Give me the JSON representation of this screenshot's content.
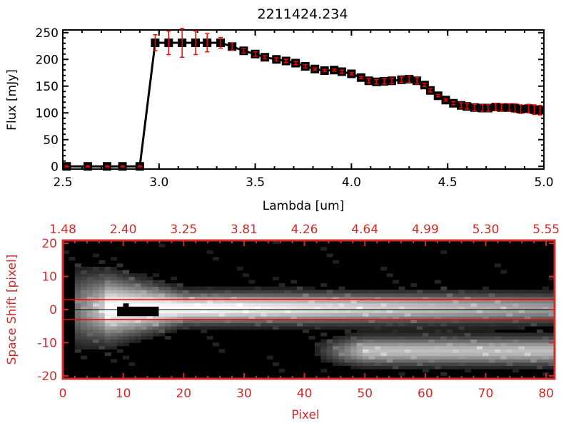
{
  "chart_data": [
    {
      "type": "line",
      "title": "2211424.234",
      "xlabel": "Lambda [um]",
      "ylabel": "Flux [mJy]",
      "xlim": [
        2.5,
        5.0
      ],
      "ylim": [
        -5,
        255
      ],
      "xticks": [
        "2.5",
        "3.0",
        "3.5",
        "4.0",
        "4.5",
        "5.0"
      ],
      "yticks": [
        "0",
        "50",
        "100",
        "150",
        "200",
        "250"
      ],
      "grid": false,
      "marker": "square",
      "line_color": "#000000",
      "errorbar_color": "#ff0000",
      "x": [
        2.52,
        2.63,
        2.73,
        2.81,
        2.9,
        2.98,
        3.05,
        3.12,
        3.19,
        3.25,
        3.32,
        3.38,
        3.44,
        3.5,
        3.55,
        3.61,
        3.66,
        3.71,
        3.76,
        3.81,
        3.86,
        3.91,
        3.95,
        4.0,
        4.05,
        4.09,
        4.13,
        4.17,
        4.21,
        4.26,
        4.3,
        4.34,
        4.38,
        4.41,
        4.45,
        4.49,
        4.53,
        4.57,
        4.6,
        4.64,
        4.68,
        4.71,
        4.75,
        4.78,
        4.82,
        4.85,
        4.88,
        4.92,
        4.95,
        4.98
      ],
      "y": [
        0,
        0,
        0,
        0,
        0,
        231,
        231,
        231,
        231,
        231,
        231,
        224,
        216,
        210,
        204,
        200,
        197,
        193,
        187,
        182,
        179,
        180,
        177,
        173,
        166,
        160,
        158,
        159,
        160,
        162,
        163,
        160,
        152,
        142,
        132,
        124,
        118,
        114,
        112,
        110,
        109,
        109,
        111,
        110,
        110,
        109,
        107,
        108,
        106,
        105
      ],
      "yerr": [
        1,
        1,
        1,
        1,
        1,
        15,
        22,
        27,
        22,
        17,
        10,
        7,
        4,
        4,
        3,
        3,
        3,
        3,
        3,
        2,
        2,
        2,
        3,
        2,
        2,
        4,
        4,
        5,
        5,
        5,
        6,
        6,
        3,
        3,
        2,
        2,
        3,
        5,
        5,
        6,
        6,
        6,
        7,
        7,
        7,
        8,
        8,
        8,
        9,
        9
      ]
    },
    {
      "type": "heatmap",
      "xlabel": "Pixel",
      "ylabel": "Space Shift [pixel]",
      "xlim": [
        0,
        81.4
      ],
      "ylim": [
        -20.9,
        20.9
      ],
      "xticks": [
        "0",
        "10",
        "20",
        "30",
        "40",
        "50",
        "60",
        "70",
        "80"
      ],
      "yticks": [
        "-20",
        "-10",
        "0",
        "10",
        "20"
      ],
      "top_xticks": [
        "1.48",
        "2.40",
        "3.25",
        "3.81",
        "4.26",
        "4.64",
        "4.99",
        "5.30",
        "5.55"
      ],
      "colormap": "grayscale",
      "axis_color": "#d42a2a",
      "aperture_lines": [
        -3,
        3
      ],
      "center_line": 0
    }
  ]
}
